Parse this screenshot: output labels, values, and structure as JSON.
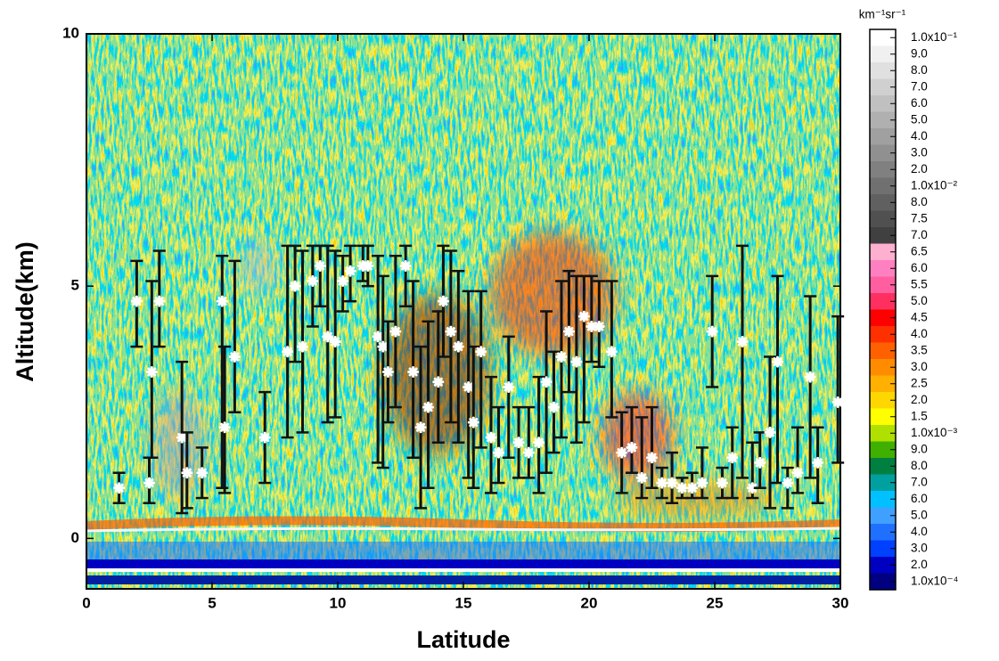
{
  "chart_data": {
    "type": "errorbar",
    "xlabel": "Latitude",
    "ylabel": "Altitude(km)",
    "xlim": [
      0,
      30
    ],
    "xticks": [
      0,
      5,
      10,
      15,
      20,
      25,
      30
    ],
    "ylim": [
      -1,
      10
    ],
    "yticks": [
      0,
      5,
      10
    ],
    "grid": false,
    "series": [
      {
        "marker_color": "#ffffff",
        "color": "#111111",
        "x": [
          1.3,
          2.0,
          2.5,
          2.6,
          2.9,
          3.8,
          4.0,
          4.6,
          5.4,
          5.5,
          5.9,
          7.1,
          8.0,
          8.3,
          8.6,
          9.0,
          9.3,
          9.6,
          9.9,
          10.2,
          10.5,
          11.0,
          11.2,
          11.6,
          11.8,
          12.0,
          12.3,
          12.7,
          13.0,
          13.3,
          13.6,
          14.0,
          14.2,
          14.5,
          14.8,
          15.2,
          15.4,
          15.7,
          16.1,
          16.4,
          16.8,
          17.2,
          17.6,
          18.0,
          18.3,
          18.6,
          18.9,
          19.2,
          19.5,
          19.8,
          20.1,
          20.4,
          20.9,
          21.3,
          21.7,
          22.1,
          22.5,
          22.9,
          23.3,
          23.7,
          24.1,
          24.5,
          24.9,
          25.3,
          25.7,
          26.1,
          26.5,
          26.8,
          27.2,
          27.5,
          27.9,
          28.3,
          28.8,
          29.1,
          29.9
        ],
        "values": [
          1.0,
          4.7,
          1.1,
          3.3,
          4.7,
          2.0,
          1.3,
          1.3,
          4.7,
          2.2,
          3.6,
          2.0,
          3.7,
          5.0,
          3.8,
          5.1,
          5.4,
          4.0,
          3.9,
          5.1,
          5.3,
          5.4,
          5.4,
          4.0,
          3.8,
          3.3,
          4.1,
          5.4,
          3.3,
          2.2,
          2.6,
          3.1,
          4.7,
          4.1,
          3.8,
          3.0,
          2.3,
          3.7,
          2.0,
          1.7,
          3.0,
          1.9,
          1.7,
          1.9,
          3.1,
          2.6,
          3.6,
          4.1,
          3.5,
          4.4,
          4.2,
          4.2,
          3.7,
          1.7,
          1.8,
          1.2,
          1.6,
          1.1,
          1.1,
          1.0,
          1.0,
          1.1,
          4.1,
          1.1,
          1.6,
          3.9,
          1.0,
          1.5,
          2.1,
          3.5,
          1.1,
          1.3,
          3.2,
          1.5,
          2.7
        ],
        "lower": [
          0.7,
          3.8,
          0.7,
          1.6,
          3.8,
          0.5,
          0.6,
          0.8,
          1.0,
          0.9,
          2.5,
          1.1,
          2.0,
          3.5,
          2.1,
          4.2,
          4.6,
          2.3,
          2.4,
          4.5,
          4.7,
          5.1,
          5.0,
          1.5,
          1.4,
          2.3,
          2.6,
          4.6,
          1.6,
          0.6,
          1.0,
          1.9,
          3.6,
          2.3,
          1.9,
          1.2,
          1.0,
          1.8,
          0.9,
          1.1,
          1.6,
          1.2,
          1.2,
          0.9,
          1.3,
          1.7,
          2.0,
          2.9,
          1.9,
          2.3,
          3.5,
          3.4,
          2.4,
          0.9,
          1.3,
          0.8,
          1.0,
          0.8,
          0.7,
          0.8,
          0.8,
          0.8,
          3.0,
          0.8,
          0.8,
          1.2,
          0.8,
          1.0,
          0.6,
          1.1,
          0.6,
          0.9,
          1.2,
          0.7,
          1.5
        ],
        "upper": [
          1.3,
          5.5,
          1.6,
          5.1,
          5.7,
          3.5,
          2.1,
          1.8,
          5.6,
          3.8,
          5.5,
          2.9,
          5.8,
          5.8,
          5.7,
          5.8,
          5.8,
          5.8,
          5.7,
          5.6,
          5.8,
          5.8,
          5.8,
          5.6,
          5.2,
          4.3,
          5.6,
          5.8,
          5.1,
          3.8,
          4.3,
          4.5,
          5.8,
          5.7,
          5.3,
          4.9,
          3.8,
          4.9,
          3.2,
          2.6,
          4.0,
          2.6,
          2.6,
          3.2,
          4.5,
          3.7,
          5.1,
          5.3,
          5.2,
          5.2,
          5.2,
          5.1,
          5.1,
          2.5,
          2.6,
          2.4,
          2.6,
          1.4,
          1.7,
          1.2,
          1.3,
          1.8,
          5.2,
          1.4,
          2.2,
          5.8,
          1.9,
          2.1,
          3.6,
          5.2,
          1.4,
          2.2,
          4.8,
          2.2,
          4.4
        ]
      }
    ],
    "colorbar": {
      "unit": "km⁻¹sr⁻¹",
      "labels": [
        "1.0x10⁻¹",
        "9.0",
        "8.0",
        "7.0",
        "6.0",
        "5.0",
        "4.0",
        "3.0",
        "2.0",
        "1.0x10⁻²",
        "8.0",
        "7.5",
        "7.0",
        "6.5",
        "6.0",
        "5.5",
        "5.0",
        "4.5",
        "4.0",
        "3.5",
        "3.0",
        "2.5",
        "2.0",
        "1.5",
        "1.0x10⁻³",
        "9.0",
        "8.0",
        "7.0",
        "6.0",
        "5.0",
        "4.0",
        "3.0",
        "2.0",
        "1.0x10⁻⁴"
      ],
      "colors": [
        "#ffffff",
        "#f0f0f0",
        "#e0e0e0",
        "#d0d0d0",
        "#c0c0c0",
        "#b0b0b0",
        "#a0a0a0",
        "#909090",
        "#808080",
        "#707070",
        "#606060",
        "#505050",
        "#404040",
        "#ffb0d0",
        "#ff80c0",
        "#ff5f9f",
        "#ff3060",
        "#ff0000",
        "#ff3000",
        "#ff6000",
        "#ff8c00",
        "#ffb000",
        "#ffd700",
        "#ffff00",
        "#b0e000",
        "#40b000",
        "#008040",
        "#00a0a0",
        "#00c0ff",
        "#40a0ff",
        "#2070ff",
        "#0040ff",
        "#0000c0",
        "#000080"
      ]
    }
  }
}
